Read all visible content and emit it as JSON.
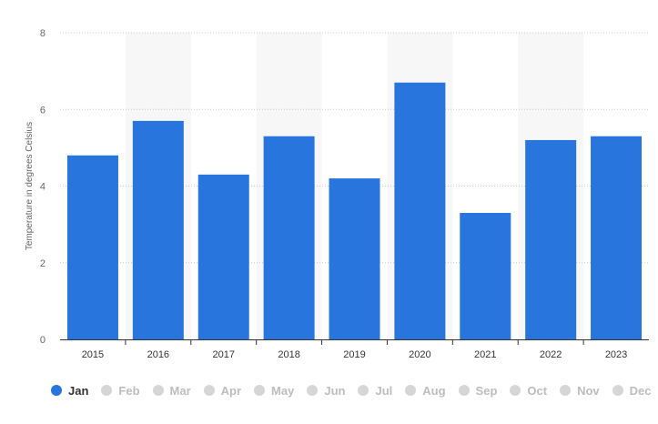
{
  "chart_data": {
    "type": "bar",
    "ylabel": "Temperature in degrees Celsius",
    "categories": [
      "2015",
      "2016",
      "2017",
      "2018",
      "2019",
      "2020",
      "2021",
      "2022",
      "2023"
    ],
    "series": [
      {
        "name": "Jan",
        "values": [
          4.8,
          5.7,
          4.3,
          5.3,
          4.2,
          6.7,
          3.3,
          5.2,
          5.3
        ]
      }
    ],
    "ylim": [
      0,
      8
    ],
    "yticks": [
      "0",
      "2",
      "4",
      "6",
      "8"
    ],
    "grid": true,
    "bar_color": "#2876dd",
    "alternating_band_color": "#f7f7f7",
    "legend_position": "bottom-left"
  },
  "legend": {
    "items": [
      {
        "label": "Jan",
        "active": true
      },
      {
        "label": "Feb",
        "active": false
      },
      {
        "label": "Mar",
        "active": false
      },
      {
        "label": "Apr",
        "active": false
      },
      {
        "label": "May",
        "active": false
      },
      {
        "label": "Jun",
        "active": false
      },
      {
        "label": "Jul",
        "active": false
      },
      {
        "label": "Aug",
        "active": false
      },
      {
        "label": "Sep",
        "active": false
      },
      {
        "label": "Oct",
        "active": false
      },
      {
        "label": "Nov",
        "active": false
      },
      {
        "label": "Dec",
        "active": false
      }
    ],
    "active_color": "#2876dd",
    "inactive_color": "#d6d6d6"
  }
}
